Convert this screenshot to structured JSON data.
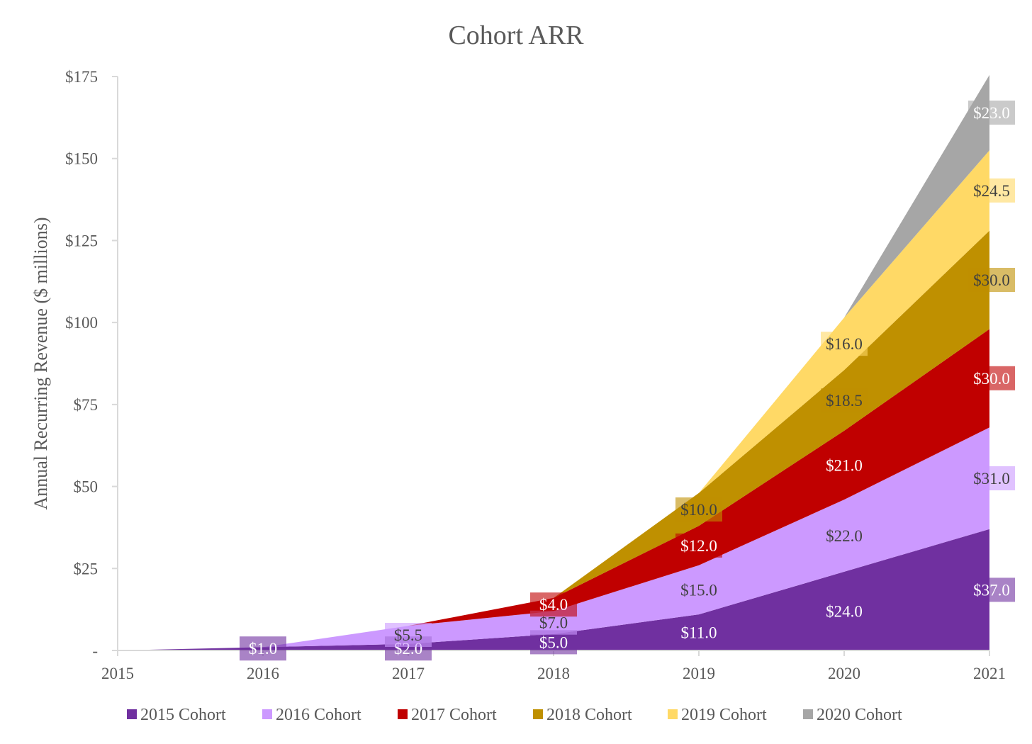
{
  "chart_data": {
    "type": "area",
    "stacked": true,
    "title": "Cohort ARR",
    "ylabel": "Annual Recurring Revenue ($ millions)",
    "xlabel": "",
    "x": [
      "2015",
      "2016",
      "2017",
      "2018",
      "2019",
      "2020",
      "2021"
    ],
    "ylim": [
      0,
      175
    ],
    "yticks": [
      {
        "value": 0,
        "label": "-"
      },
      {
        "value": 25,
        "label": "$25"
      },
      {
        "value": 50,
        "label": "$50"
      },
      {
        "value": 75,
        "label": "$75"
      },
      {
        "value": 100,
        "label": "$100"
      },
      {
        "value": 125,
        "label": "$125"
      },
      {
        "value": 150,
        "label": "$150"
      },
      {
        "value": 175,
        "label": "$175"
      }
    ],
    "grid": false,
    "legend_position": "bottom",
    "series": [
      {
        "name": "2015 Cohort",
        "color": "#7030A0",
        "label_color": "#ffffff",
        "values": [
          0,
          1.0,
          2.0,
          5.0,
          11.0,
          24.0,
          37.0
        ],
        "labels": [
          null,
          "$1.0",
          "$2.0",
          "$5.0",
          "$11.0",
          "$24.0",
          "$37.0"
        ]
      },
      {
        "name": "2016 Cohort",
        "color": "#CC99FF",
        "label_color": "#404040",
        "values": [
          0,
          0,
          5.5,
          7.0,
          15.0,
          22.0,
          31.0
        ],
        "labels": [
          null,
          null,
          "$5.5",
          "$7.0",
          "$15.0",
          "$22.0",
          "$31.0"
        ]
      },
      {
        "name": "2017 Cohort",
        "color": "#C00000",
        "label_color": "#ffffff",
        "values": [
          0,
          0,
          0,
          4.0,
          12.0,
          21.0,
          30.0
        ],
        "labels": [
          null,
          null,
          null,
          "$4.0",
          "$12.0",
          "$21.0",
          "$30.0"
        ]
      },
      {
        "name": "2018 Cohort",
        "color": "#BF9000",
        "label_color": "#404040",
        "values": [
          0,
          0,
          0,
          0,
          10.0,
          18.5,
          30.0
        ],
        "labels": [
          null,
          null,
          null,
          null,
          "$10.0",
          "$18.5",
          "$30.0"
        ]
      },
      {
        "name": "2019 Cohort",
        "color": "#FFD966",
        "label_color": "#404040",
        "values": [
          0,
          0,
          0,
          0,
          0,
          16.0,
          24.5
        ],
        "labels": [
          null,
          null,
          null,
          null,
          null,
          "$16.0",
          "$24.5"
        ]
      },
      {
        "name": "2020 Cohort",
        "color": "#A6A6A6",
        "label_color": "#ffffff",
        "values": [
          0,
          0,
          0,
          0,
          0,
          0,
          23.0
        ],
        "labels": [
          null,
          null,
          null,
          null,
          null,
          null,
          "$23.0"
        ]
      }
    ]
  }
}
